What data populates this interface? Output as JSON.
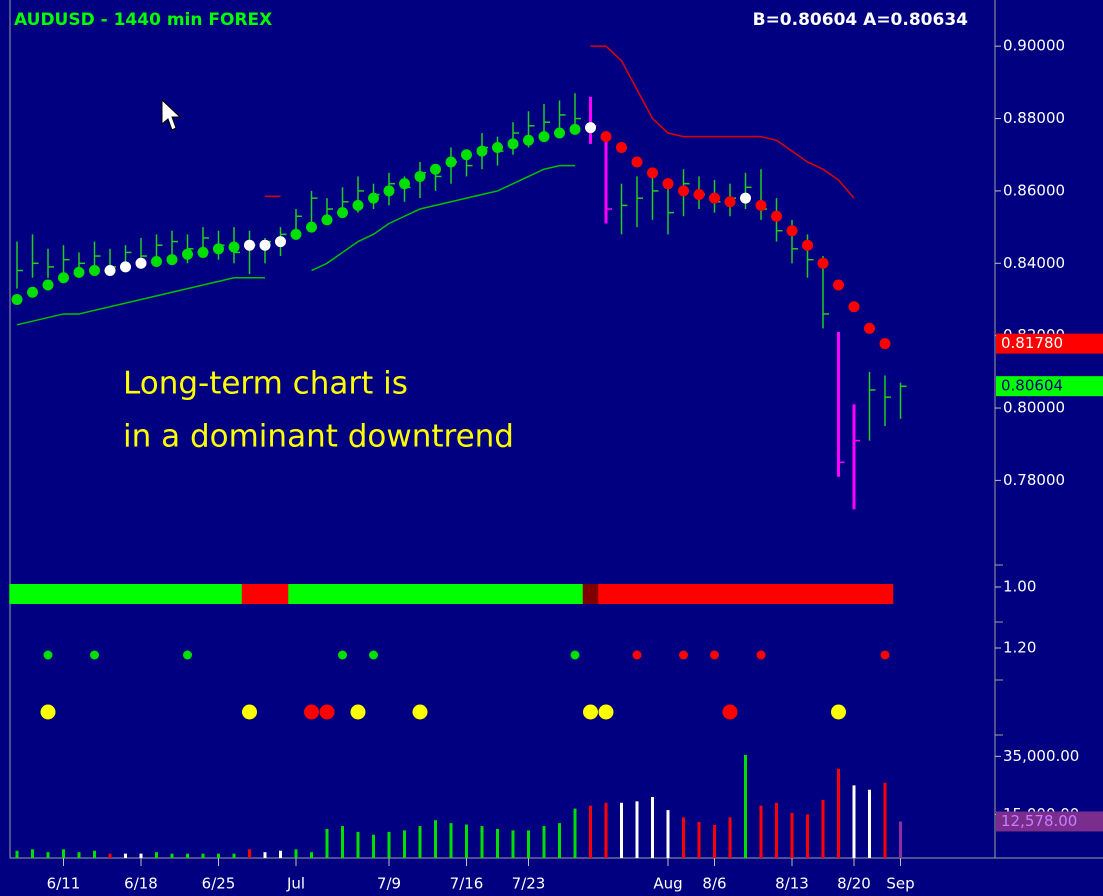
{
  "chart_data": {
    "type": "ohlc",
    "title": "AUDUSD - 1440 min  FOREX",
    "quote": "B=0.80604  A=0.80634",
    "annotation": [
      "Long-term chart is",
      "in a dominant downtrend"
    ],
    "categories": [
      null,
      null,
      null,
      "6/11",
      null,
      null,
      null,
      null,
      "6/18",
      null,
      null,
      null,
      null,
      "6/25",
      null,
      null,
      null,
      null,
      "Jul",
      null,
      null,
      null,
      null,
      null,
      "7/9",
      null,
      null,
      null,
      null,
      "7/16",
      null,
      null,
      null,
      "7/23",
      null,
      null,
      null,
      null,
      null,
      null,
      null,
      null,
      "Aug",
      null,
      null,
      "8/6",
      null,
      null,
      null,
      null,
      "8/13",
      null,
      null,
      null,
      "8/20",
      null,
      null,
      "Sep"
    ],
    "high": [
      0.846,
      0.848,
      0.844,
      0.845,
      0.843,
      0.846,
      0.844,
      0.845,
      0.847,
      0.848,
      0.849,
      0.848,
      0.85,
      0.849,
      0.85,
      0.849,
      0.847,
      0.85,
      0.855,
      0.86,
      0.858,
      0.861,
      0.864,
      0.862,
      0.865,
      0.864,
      0.868,
      0.867,
      0.872,
      0.871,
      0.876,
      0.875,
      0.879,
      0.882,
      0.884,
      0.885,
      0.887,
      0.886,
      0.875,
      0.862,
      0.864,
      0.865,
      0.863,
      0.866,
      0.864,
      0.863,
      0.862,
      0.865,
      0.866,
      0.858,
      0.852,
      0.848,
      0.842,
      0.821,
      0.801,
      0.81,
      0.809,
      0.807
    ],
    "low": [
      0.833,
      0.836,
      0.836,
      0.837,
      0.836,
      0.838,
      0.837,
      0.838,
      0.839,
      0.84,
      0.842,
      0.84,
      0.843,
      0.841,
      0.84,
      0.837,
      0.84,
      0.842,
      0.847,
      0.851,
      0.852,
      0.853,
      0.854,
      0.855,
      0.856,
      0.857,
      0.858,
      0.86,
      0.862,
      0.864,
      0.866,
      0.867,
      0.87,
      0.872,
      0.874,
      0.875,
      0.876,
      0.873,
      0.851,
      0.848,
      0.85,
      0.852,
      0.848,
      0.853,
      0.855,
      0.854,
      0.853,
      0.855,
      0.852,
      0.846,
      0.84,
      0.836,
      0.822,
      0.781,
      0.772,
      0.791,
      0.795,
      0.797
    ],
    "close": [
      0.838,
      0.84,
      0.839,
      0.841,
      0.84,
      0.842,
      0.839,
      0.843,
      0.842,
      0.845,
      0.846,
      0.844,
      0.847,
      0.845,
      0.843,
      0.845,
      0.846,
      0.848,
      0.853,
      0.858,
      0.855,
      0.857,
      0.86,
      0.859,
      0.862,
      0.861,
      0.865,
      0.864,
      0.868,
      0.867,
      0.872,
      0.871,
      0.876,
      0.878,
      0.879,
      0.881,
      0.88,
      0.878,
      0.855,
      0.856,
      0.858,
      0.86,
      0.854,
      0.862,
      0.859,
      0.857,
      0.858,
      0.861,
      0.855,
      0.849,
      0.844,
      0.841,
      0.826,
      0.785,
      0.791,
      0.805,
      0.803,
      0.806
    ],
    "bar_colors": [
      "#22cc22",
      "#22cc22",
      "#22cc22",
      "#22cc22",
      "#22cc22",
      "#22cc22",
      "#22cc22",
      "#22cc22",
      "#22cc22",
      "#22cc22",
      "#22cc22",
      "#22cc22",
      "#22cc22",
      "#22cc22",
      "#22cc22",
      "#22cc22",
      "#22cc22",
      "#22cc22",
      "#22cc22",
      "#22cc22",
      "#22cc22",
      "#22cc22",
      "#22cc22",
      "#22cc22",
      "#22cc22",
      "#22cc22",
      "#22cc22",
      "#22cc22",
      "#22cc22",
      "#22cc22",
      "#22cc22",
      "#22cc22",
      "#22cc22",
      "#22cc22",
      "#22cc22",
      "#22cc22",
      "#22cc22",
      "#ff00ff",
      "#ff00ff",
      "#22cc22",
      "#22cc22",
      "#22cc22",
      "#22cc22",
      "#22cc22",
      "#22cc22",
      "#22cc22",
      "#22cc22",
      "#22cc22",
      "#22cc22",
      "#22cc22",
      "#22cc22",
      "#22cc22",
      "#22cc22",
      "#ff00ff",
      "#ff00ff",
      "#22cc22",
      "#22cc22",
      "#22cc22"
    ],
    "ylim": [
      0.758,
      0.91
    ],
    "yticks": [
      {
        "value": 0.9,
        "label": "0.90000"
      },
      {
        "value": 0.88,
        "label": "0.88000"
      },
      {
        "value": 0.86,
        "label": "0.86000"
      },
      {
        "value": 0.84,
        "label": "0.84000"
      },
      {
        "value": 0.82,
        "label": "0.82000"
      },
      {
        "value": 0.8,
        "label": "0.80000"
      },
      {
        "value": 0.78,
        "label": "0.78000"
      }
    ],
    "price_labels": [
      {
        "value": 0.8178,
        "label": "0.81780",
        "color": "#ff0000"
      },
      {
        "value": 0.80604,
        "label": "0.80604",
        "color": "#00ff00"
      }
    ],
    "dots": {
      "values": [
        0.83,
        0.832,
        0.834,
        0.836,
        0.8375,
        0.838,
        0.838,
        0.839,
        0.84,
        0.8405,
        0.841,
        0.8425,
        0.843,
        0.844,
        0.8445,
        0.845,
        0.845,
        0.846,
        0.848,
        0.85,
        0.852,
        0.854,
        0.856,
        0.858,
        0.86,
        0.862,
        0.864,
        0.866,
        0.868,
        0.87,
        0.871,
        0.872,
        0.873,
        0.874,
        0.875,
        0.876,
        0.877,
        0.8775,
        0.875,
        0.872,
        0.868,
        0.865,
        0.862,
        0.86,
        0.859,
        0.858,
        0.857,
        0.858,
        0.856,
        0.853,
        0.849,
        0.845,
        0.84,
        0.834,
        0.828,
        0.822,
        0.8178,
        null
      ],
      "colors": [
        "#00e000",
        "#00e000",
        "#00e000",
        "#00e000",
        "#00e000",
        "#00e000",
        "#ffffff",
        "#ffffff",
        "#ffffff",
        "#00e000",
        "#00e000",
        "#00e000",
        "#00e000",
        "#00e000",
        "#00e000",
        "#ffffff",
        "#ffffff",
        "#ffffff",
        "#00e000",
        "#00e000",
        "#00e000",
        "#00e000",
        "#00e000",
        "#00e000",
        "#00e000",
        "#00e000",
        "#00e000",
        "#00e000",
        "#00e000",
        "#00e000",
        "#00e000",
        "#00e000",
        "#00e000",
        "#00e000",
        "#00e000",
        "#00e000",
        "#00e000",
        "#ffffff",
        "#ff0000",
        "#ff0000",
        "#ff0000",
        "#ff0000",
        "#ff0000",
        "#ff0000",
        "#ff0000",
        "#ff0000",
        "#ff0000",
        "#ffffff",
        "#ff0000",
        "#ff0000",
        "#ff0000",
        "#ff0000",
        "#ff0000",
        "#ff0000",
        "#ff0000",
        "#ff0000",
        "#ff0000",
        null
      ]
    },
    "lines": [
      {
        "color": "#00c000",
        "values": [
          0.823,
          0.824,
          0.825,
          0.826,
          0.826,
          0.827,
          0.828,
          0.829,
          0.83,
          0.831,
          0.832,
          0.833,
          0.834,
          0.835,
          0.836,
          0.836,
          0.836,
          null,
          null,
          0.838,
          0.84,
          0.843,
          0.846,
          0.848,
          0.851,
          0.853,
          0.855,
          0.856,
          0.857,
          0.858,
          0.859,
          0.86,
          0.862,
          0.864,
          0.866,
          0.867,
          0.867,
          null,
          null,
          null,
          null,
          null,
          null,
          null,
          null,
          null,
          null,
          null,
          null,
          null,
          null,
          null,
          null,
          null,
          null,
          null,
          null,
          null
        ]
      },
      {
        "color": "#e00000",
        "values": [
          null,
          null,
          null,
          null,
          null,
          null,
          null,
          null,
          null,
          null,
          null,
          null,
          null,
          null,
          null,
          null,
          0.8585,
          0.8585,
          null,
          null,
          null,
          null,
          null,
          null,
          null,
          null,
          null,
          null,
          null,
          null,
          null,
          null,
          null,
          null,
          null,
          null,
          null,
          0.9,
          0.9,
          0.896,
          0.888,
          0.88,
          0.876,
          0.875,
          0.875,
          0.875,
          0.875,
          0.875,
          0.875,
          0.874,
          0.871,
          0.868,
          0.866,
          0.863,
          0.858,
          null,
          null,
          null
        ]
      }
    ],
    "trend_bar": {
      "colors": [
        "#00ff00",
        "#00ff00",
        "#00ff00",
        "#00ff00",
        "#00ff00",
        "#00ff00",
        "#00ff00",
        "#00ff00",
        "#00ff00",
        "#00ff00",
        "#00ff00",
        "#00ff00",
        "#00ff00",
        "#00ff00",
        "#00ff00",
        "#ff0000",
        "#ff0000",
        "#ff0000",
        "#00ff00",
        "#00ff00",
        "#00ff00",
        "#00ff00",
        "#00ff00",
        "#00ff00",
        "#00ff00",
        "#00ff00",
        "#00ff00",
        "#00ff00",
        "#00ff00",
        "#00ff00",
        "#00ff00",
        "#00ff00",
        "#00ff00",
        "#00ff00",
        "#00ff00",
        "#00ff00",
        "#00ff00",
        "#800000",
        "#ff0000",
        "#ff0000",
        "#ff0000",
        "#ff0000",
        "#ff0000",
        "#ff0000",
        "#ff0000",
        "#ff0000",
        "#ff0000",
        "#ff0000",
        "#ff0000",
        "#ff0000",
        "#ff0000",
        "#ff0000",
        "#ff0000",
        "#ff0000",
        "#ff0000",
        "#ff0000",
        "#ff0000",
        null
      ]
    },
    "indicator_labels": [
      "1.00",
      "1.20"
    ],
    "signal_rows": [
      {
        "colors": [
          null,
          null,
          "#00e000",
          null,
          null,
          "#00e000",
          null,
          null,
          null,
          null,
          null,
          "#00e000",
          null,
          null,
          null,
          null,
          null,
          null,
          null,
          null,
          null,
          "#00e000",
          null,
          "#00e000",
          null,
          null,
          null,
          null,
          null,
          null,
          null,
          null,
          null,
          null,
          null,
          null,
          "#00e000",
          null,
          null,
          null,
          "#ff0000",
          null,
          null,
          "#ff0000",
          null,
          "#ff0000",
          null,
          null,
          "#ff0000",
          null,
          null,
          null,
          null,
          null,
          null,
          null,
          "#ff0000",
          null
        ]
      },
      {
        "colors": [
          null,
          null,
          "#ffff00",
          null,
          null,
          null,
          null,
          null,
          null,
          null,
          null,
          null,
          null,
          null,
          null,
          "#ffff00",
          null,
          null,
          null,
          "#ff0000",
          "#ff0000",
          null,
          "#ffff00",
          null,
          null,
          null,
          "#ffff00",
          null,
          null,
          null,
          null,
          null,
          null,
          null,
          null,
          null,
          null,
          "#ffff00",
          "#ffff00",
          null,
          null,
          null,
          null,
          null,
          null,
          null,
          "#ff0000",
          null,
          null,
          null,
          null,
          null,
          null,
          "#ffff00",
          null,
          null,
          null,
          null
        ]
      }
    ],
    "volume": {
      "values": [
        2500,
        3000,
        2000,
        3000,
        2000,
        2500,
        1500,
        1500,
        1500,
        2000,
        1500,
        1500,
        1500,
        1500,
        1500,
        3000,
        2000,
        2500,
        3000,
        2000,
        10000,
        11000,
        9000,
        8000,
        9000,
        9500,
        11000,
        13000,
        12000,
        11500,
        11000,
        10000,
        9500,
        9500,
        11000,
        12000,
        17000,
        18000,
        19000,
        19000,
        19500,
        21000,
        16500,
        14000,
        12400,
        11400,
        14000,
        35500,
        18000,
        19000,
        15500,
        15000,
        20000,
        30700,
        25000,
        23500,
        25900,
        12578
      ],
      "colors": [
        "#00e000",
        "#00e000",
        "#00e000",
        "#00e000",
        "#00e000",
        "#00e000",
        "#ff0000",
        "#ffffff",
        "#ffffff",
        "#00e000",
        "#00e000",
        "#00e000",
        "#00e000",
        "#00e000",
        "#00e000",
        "#ff0000",
        "#ffffff",
        "#ffffff",
        "#00e000",
        "#00e000",
        "#00e000",
        "#00e000",
        "#00e000",
        "#00e000",
        "#00e000",
        "#00e000",
        "#00e000",
        "#00e000",
        "#00e000",
        "#00e000",
        "#00e000",
        "#00e000",
        "#00e000",
        "#00e000",
        "#00e000",
        "#00e000",
        "#00e000",
        "#ff0000",
        "#ff0000",
        "#ffffff",
        "#ffffff",
        "#ffffff",
        "#ffffff",
        "#ff0000",
        "#ff0000",
        "#ff0000",
        "#ff0000",
        "#00e000",
        "#ff0000",
        "#ff0000",
        "#ff0000",
        "#ff0000",
        "#ff0000",
        "#ff0000",
        "#ffffff",
        "#ffffff",
        "#ff0000",
        "#8e2d9e"
      ],
      "ylim": [
        0,
        42000
      ],
      "yticks": [
        {
          "value": 35000,
          "label": "35,000.00"
        },
        {
          "value": 15000,
          "label": "15,000.00"
        }
      ],
      "last": {
        "value": 12578,
        "label": "12,578.00",
        "color": "#7b2d8e"
      }
    }
  }
}
